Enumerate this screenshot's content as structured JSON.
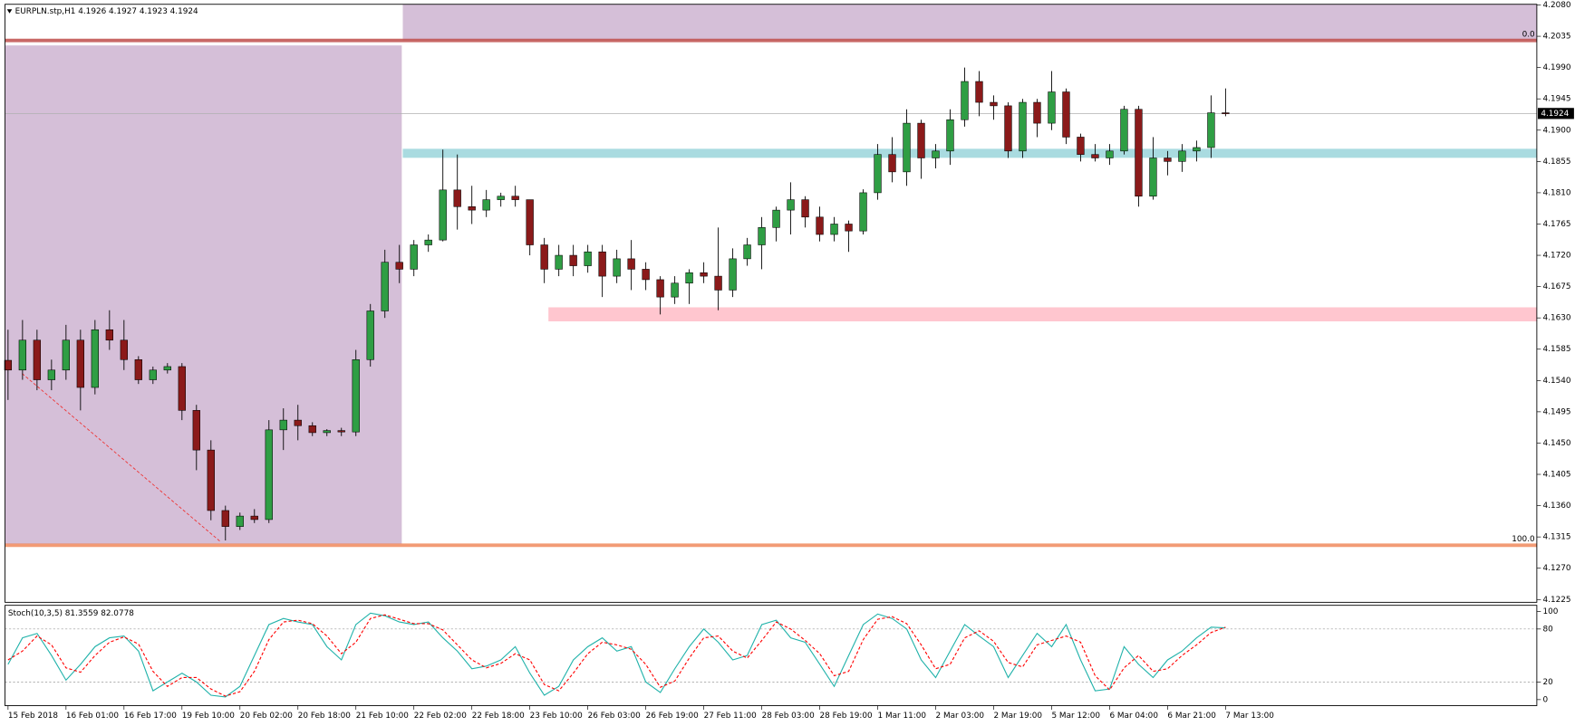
{
  "chart_data": [
    {
      "type": "candlestick",
      "title": "EURPLN.stp,H1  4.1926 4.1927 4.1923 4.1924",
      "categories": [
        "15 Feb 2018",
        null,
        null,
        null,
        "16 Feb 01:00",
        null,
        null,
        null,
        "16 Feb 17:00",
        null,
        null,
        null,
        "19 Feb 10:00",
        null,
        null,
        null,
        "20 Feb 02:00",
        null,
        null,
        null,
        "20 Feb 18:00",
        null,
        null,
        null,
        "21 Feb 10:00",
        null,
        null,
        null,
        "22 Feb 02:00",
        null,
        null,
        null,
        "22 Feb 18:00",
        null,
        null,
        null,
        "23 Feb 10:00",
        null,
        null,
        null,
        "26 Feb 03:00",
        null,
        null,
        null,
        "26 Feb 19:00",
        null,
        null,
        null,
        "27 Feb 11:00",
        null,
        null,
        null,
        "28 Feb 03:00",
        null,
        null,
        null,
        "28 Feb 19:00",
        null,
        null,
        null,
        "1 Mar 11:00",
        null,
        null,
        null,
        "2 Mar 03:00",
        null,
        null,
        null,
        "2 Mar 19:00",
        null,
        null,
        null,
        "5 Mar 12:00",
        null,
        null,
        null,
        "6 Mar 04:00",
        null,
        null,
        null,
        "6 Mar 21:00",
        null,
        null,
        null,
        "7 Mar 13:00"
      ],
      "open": [
        4.1569,
        4.1555,
        4.1598,
        4.1541,
        4.1555,
        4.1598,
        4.153,
        4.1613,
        4.1598,
        4.157,
        4.1541,
        4.1555,
        4.156,
        4.1497,
        4.144,
        4.1353,
        4.133,
        4.1345,
        4.134,
        4.1469,
        4.1483,
        4.1475,
        4.1465,
        4.1468,
        4.1466,
        4.157,
        4.164,
        4.171,
        4.17,
        4.1735,
        4.1742,
        4.1814,
        4.179,
        4.1785,
        4.18,
        4.1805,
        4.18,
        4.1735,
        4.17,
        4.172,
        4.1705,
        4.1725,
        4.169,
        4.1715,
        4.17,
        4.1685,
        4.166,
        4.168,
        4.1695,
        4.169,
        4.167,
        4.1715,
        4.1735,
        4.176,
        4.1785,
        4.18,
        4.1775,
        4.175,
        4.1765,
        4.1755,
        4.181,
        4.1865,
        4.184,
        4.191,
        4.186,
        4.187,
        4.1915,
        4.197,
        4.194,
        4.1935,
        4.187,
        4.194,
        4.191,
        4.1955,
        4.189,
        4.1865,
        4.186,
        4.187,
        4.193,
        4.1805,
        4.186,
        4.1855,
        4.187,
        4.1875,
        4.1925
      ],
      "high": [
        4.1613,
        4.1627,
        4.1613,
        4.157,
        4.162,
        4.1613,
        4.1627,
        4.1641,
        4.1627,
        4.1575,
        4.156,
        4.1565,
        4.1565,
        4.1505,
        4.1454,
        4.136,
        4.135,
        4.1355,
        4.1483,
        4.15,
        4.1505,
        4.148,
        4.147,
        4.1472,
        4.1584,
        4.165,
        4.1728,
        4.1735,
        4.1742,
        4.175,
        4.1872,
        4.1865,
        4.182,
        4.1814,
        4.181,
        4.182,
        4.18,
        4.1745,
        4.1735,
        4.1735,
        4.1735,
        4.1735,
        4.1728,
        4.1742,
        4.171,
        4.169,
        4.169,
        4.17,
        4.171,
        4.176,
        4.173,
        4.1745,
        4.1775,
        4.179,
        4.1825,
        4.1805,
        4.179,
        4.1775,
        4.177,
        4.1815,
        4.188,
        4.189,
        4.193,
        4.1915,
        4.188,
        4.193,
        4.199,
        4.1985,
        4.195,
        4.194,
        4.1945,
        4.1945,
        4.1985,
        4.196,
        4.1895,
        4.188,
        4.188,
        4.1935,
        4.1935,
        4.189,
        4.187,
        4.188,
        4.1885,
        4.195,
        4.196
      ],
      "low": [
        4.1512,
        4.1541,
        4.1526,
        4.1526,
        4.1541,
        4.1497,
        4.152,
        4.1584,
        4.1555,
        4.1535,
        4.1535,
        4.155,
        4.1483,
        4.1411,
        4.1339,
        4.131,
        4.1325,
        4.1335,
        4.1335,
        4.144,
        4.1454,
        4.146,
        4.146,
        4.146,
        4.146,
        4.156,
        4.163,
        4.168,
        4.169,
        4.1725,
        4.174,
        4.1757,
        4.1765,
        4.1775,
        4.179,
        4.179,
        4.172,
        4.168,
        4.169,
        4.169,
        4.1695,
        4.166,
        4.168,
        4.167,
        4.167,
        4.1635,
        4.165,
        4.165,
        4.168,
        4.1641,
        4.166,
        4.1705,
        4.17,
        4.174,
        4.175,
        4.176,
        4.174,
        4.174,
        4.1725,
        4.175,
        4.18,
        4.1825,
        4.182,
        4.183,
        4.1845,
        4.185,
        4.1905,
        4.192,
        4.1915,
        4.186,
        4.186,
        4.189,
        4.19,
        4.188,
        4.1855,
        4.1855,
        4.185,
        4.1865,
        4.179,
        4.18,
        4.1835,
        4.184,
        4.1855,
        4.186,
        4.192
      ],
      "close": [
        4.1555,
        4.1598,
        4.1541,
        4.1555,
        4.1598,
        4.153,
        4.1613,
        4.1598,
        4.157,
        4.1541,
        4.1555,
        4.156,
        4.1497,
        4.144,
        4.1353,
        4.133,
        4.1345,
        4.134,
        4.1469,
        4.1483,
        4.1475,
        4.1465,
        4.1468,
        4.1466,
        4.157,
        4.164,
        4.171,
        4.17,
        4.1735,
        4.1742,
        4.1814,
        4.179,
        4.1785,
        4.18,
        4.1805,
        4.18,
        4.1735,
        4.17,
        4.172,
        4.1705,
        4.1725,
        4.169,
        4.1715,
        4.17,
        4.1685,
        4.166,
        4.168,
        4.1695,
        4.169,
        4.167,
        4.1715,
        4.1735,
        4.176,
        4.1785,
        4.18,
        4.1775,
        4.175,
        4.1765,
        4.1755,
        4.181,
        4.1865,
        4.184,
        4.191,
        4.186,
        4.187,
        4.1915,
        4.197,
        4.194,
        4.1935,
        4.187,
        4.194,
        4.191,
        4.1955,
        4.189,
        4.1865,
        4.186,
        4.187,
        4.193,
        4.1805,
        4.186,
        4.1855,
        4.187,
        4.1875,
        4.1925,
        4.1924
      ],
      "up_color": "#2f9e44",
      "down_color": "#8b1a1a",
      "bid": 4.1924,
      "fib_levels": [
        {
          "label": "0.0",
          "price": 4.2029,
          "color": "#c0504d"
        },
        {
          "label": "100.0",
          "price": 4.1303,
          "color": "#f08a5d"
        }
      ],
      "ylim": [
        4.1221,
        4.2081
      ],
      "yticks": [
        {
          "value": 4.208,
          "label": "4.2080"
        },
        4.2035,
        {
          "value": 4.199,
          "label": "4.1990"
        },
        4.1945,
        {
          "value": 4.19,
          "label": "4.1900"
        },
        4.1855,
        {
          "value": 4.181,
          "label": "4.1810"
        },
        4.1765,
        {
          "value": 4.172,
          "label": "4.1720"
        },
        4.1675,
        {
          "value": 4.163,
          "label": "4.1630"
        },
        4.1585,
        {
          "value": 4.154,
          "label": "4.1540"
        },
        4.1495,
        {
          "value": 4.145,
          "label": "4.1450"
        },
        4.1405,
        {
          "value": 4.136,
          "label": "4.1360"
        },
        4.1315,
        {
          "value": 4.127,
          "label": "4.1270"
        },
        4.1225
      ]
    },
    {
      "type": "line",
      "title": "Stoch(10,3,5) 81.3559 82.0778",
      "series": [
        {
          "color": "#20b2aa",
          "dashed": false,
          "values": [
            40,
            70,
            75,
            50,
            22,
            40,
            60,
            70,
            72,
            55,
            10,
            20,
            30,
            20,
            5,
            3,
            15,
            50,
            85,
            92,
            88,
            85,
            60,
            45,
            85,
            98,
            95,
            88,
            85,
            88,
            70,
            55,
            35,
            38,
            45,
            60,
            30,
            5,
            15,
            45,
            60,
            70,
            55,
            60,
            20,
            8,
            35,
            60,
            80,
            65,
            45,
            50,
            85,
            90,
            70,
            65,
            40,
            15,
            50,
            85,
            97,
            92,
            80,
            45,
            25,
            55,
            85,
            72,
            60,
            25,
            50,
            75,
            60,
            85,
            45,
            10,
            12,
            60,
            40,
            25,
            45,
            55,
            70,
            82,
            81.36
          ]
        },
        {
          "color": "#ff0000",
          "dashed": true,
          "values": [
            45,
            55,
            72,
            62,
            36,
            31,
            50,
            65,
            71,
            63,
            32,
            15,
            25,
            25,
            12,
            4,
            9,
            32,
            68,
            88,
            90,
            86,
            72,
            52,
            65,
            92,
            96,
            91,
            86,
            86,
            79,
            62,
            45,
            36,
            41,
            52,
            45,
            17,
            10,
            30,
            52,
            65,
            62,
            57,
            40,
            14,
            21,
            47,
            70,
            72,
            55,
            47,
            67,
            88,
            80,
            67,
            52,
            27,
            32,
            68,
            91,
            94,
            86,
            62,
            35,
            40,
            70,
            78,
            66,
            42,
            37,
            62,
            67,
            72,
            65,
            27,
            11,
            36,
            50,
            32,
            35,
            50,
            62,
            76,
            82.08
          ]
        }
      ],
      "ylim": [
        -5.7,
        105.7
      ],
      "yticks": [
        0,
        20,
        80,
        100
      ],
      "grid_values": [
        20,
        80
      ]
    }
  ]
}
